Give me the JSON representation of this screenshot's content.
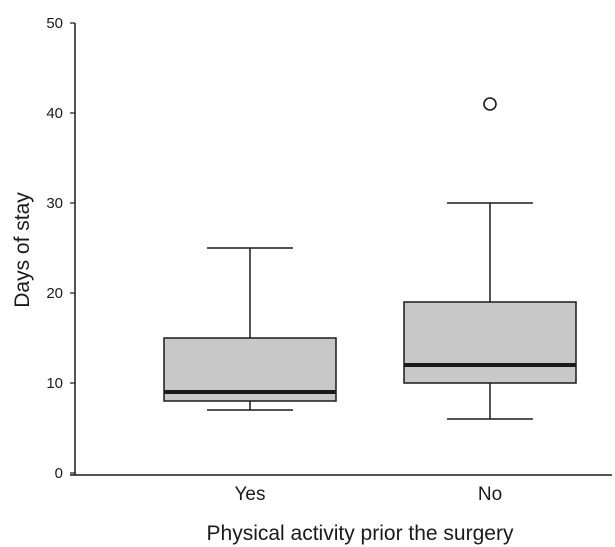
{
  "chart_data": {
    "type": "boxplot",
    "title": "",
    "xlabel": "Physical activity prior the surgery",
    "ylabel": "Days of stay",
    "ylim": [
      0,
      50
    ],
    "yticks": [
      0,
      10,
      20,
      30,
      40,
      50
    ],
    "categories": [
      "Yes",
      "No"
    ],
    "boxes": [
      {
        "category": "Yes",
        "whisker_low": 7,
        "q1": 8,
        "median": 9,
        "q3": 15,
        "whisker_high": 25,
        "outliers": []
      },
      {
        "category": "No",
        "whisker_low": 6,
        "q1": 10,
        "median": 12,
        "q3": 19,
        "whisker_high": 30,
        "outliers": [
          41
        ]
      }
    ],
    "box_fill": "#c8c8c8",
    "line_color": "#1a1a1a",
    "grid": false,
    "legend": "none"
  }
}
